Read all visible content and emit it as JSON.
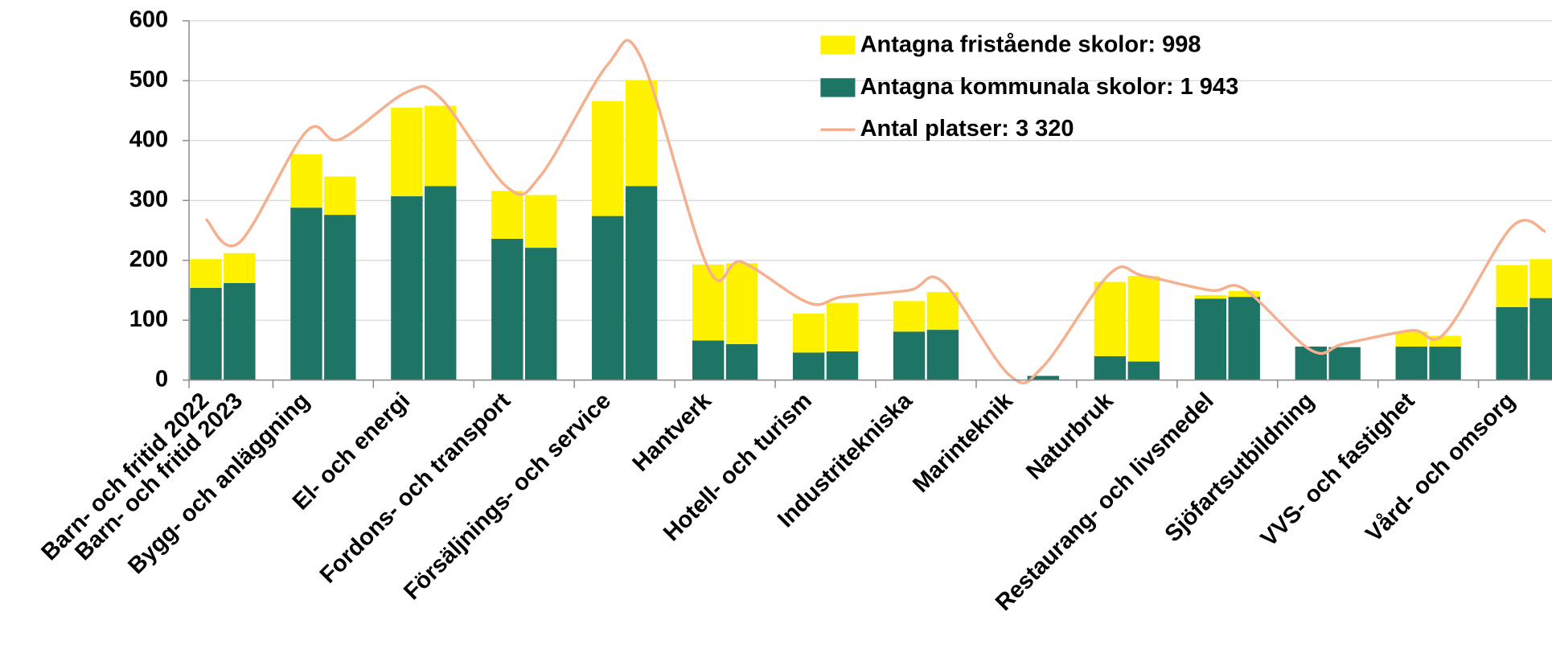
{
  "chart_data": {
    "type": "bar",
    "stacked": true,
    "categories": [
      "Barn- och fritid 2022",
      "Barn- och fritid 2023",
      "Bygg- och anläggning",
      null,
      "El- och energi",
      null,
      "Fordons- och transport",
      null,
      "Försäljnings- och service",
      null,
      "Hantverk",
      null,
      "Hotell- och turism",
      null,
      "Industritekniska",
      null,
      "Marinteknik",
      null,
      "Naturbruk",
      null,
      "Restaurang- och livsmedel",
      null,
      "Sjöfartsutbildning",
      null,
      "VVS- och fastighet",
      null,
      "Vård- och omsorg",
      null
    ],
    "series": [
      {
        "name": "Antagna kommunala skolor: 1 943",
        "type": "bar",
        "color": "#1e7566",
        "values": [
          154,
          162,
          288,
          276,
          307,
          324,
          236,
          221,
          274,
          324,
          66,
          60,
          46,
          48,
          81,
          84,
          0,
          7,
          40,
          31,
          136,
          139,
          56,
          55,
          56,
          56,
          122,
          137
        ]
      },
      {
        "name": "Antagna fristående skolor: 998",
        "type": "bar",
        "color": "#fff200",
        "values": [
          48,
          50,
          89,
          64,
          148,
          134,
          80,
          88,
          192,
          177,
          127,
          135,
          65,
          81,
          51,
          63,
          0,
          0,
          124,
          143,
          6,
          10,
          0,
          0,
          25,
          18,
          70,
          65
        ]
      },
      {
        "name": "Antal platser: 3 320",
        "type": "line",
        "color": "#f4b08f",
        "values": [
          269,
          230,
          415,
          402,
          481,
          471,
          322,
          342,
          527,
          537,
          187,
          197,
          129,
          139,
          150,
          164,
          8,
          23,
          178,
          174,
          150,
          152,
          50,
          61,
          83,
          79,
          256,
          248
        ]
      }
    ],
    "legend_order": [
      1,
      0,
      2
    ],
    "ylim": [
      0,
      600
    ],
    "yticks": [
      0,
      100,
      200,
      300,
      400,
      500,
      600
    ],
    "grid": true
  }
}
